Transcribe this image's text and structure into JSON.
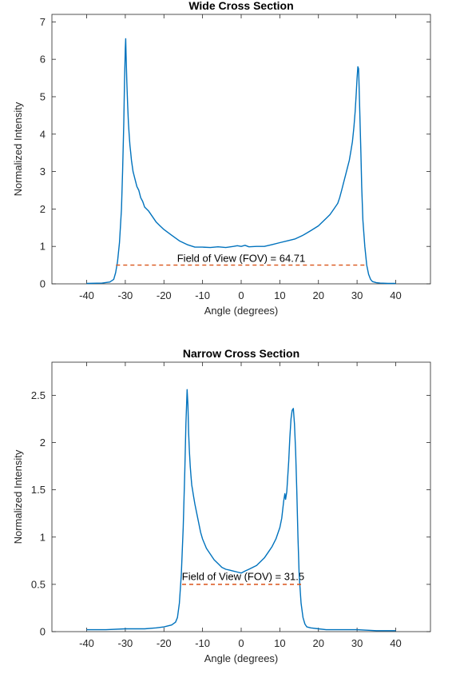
{
  "chart_data": [
    {
      "type": "line",
      "title": "Wide Cross Section",
      "xlabel": "Angle (degrees)",
      "ylabel": "Normalized Intensity",
      "xlim": [
        -49,
        49
      ],
      "ylim": [
        0,
        7.2
      ],
      "xticks": [
        "-40",
        "-30",
        "-20",
        "-10",
        "0",
        "10",
        "20",
        "30",
        "40"
      ],
      "yticks": [
        "0",
        "1",
        "2",
        "3",
        "4",
        "5",
        "6",
        "7"
      ],
      "grid": false,
      "series": [
        {
          "color": "#0072BD",
          "x": [
            -40,
            -36,
            -34,
            -33,
            -32.5,
            -32,
            -31.5,
            -31,
            -30.7,
            -30.4,
            -30.2,
            -30,
            -29.9,
            -29.8,
            -29.6,
            -29.4,
            -29.2,
            -29,
            -28.8,
            -28.6,
            -28.4,
            -28,
            -27.5,
            -27,
            -26.5,
            -26,
            -25.5,
            -25,
            -24,
            -23,
            -22,
            -21,
            -20,
            -18,
            -16,
            -14,
            -12,
            -10,
            -8,
            -6,
            -4,
            -2,
            -1,
            0,
            1,
            2,
            4,
            6,
            8,
            10,
            12,
            14,
            16,
            18,
            20,
            21,
            22,
            23,
            24,
            25,
            25.5,
            26,
            26.5,
            27,
            27.5,
            28,
            28.4,
            28.8,
            29.2,
            29.5,
            29.8,
            30,
            30.2,
            30.4,
            30.5,
            30.6,
            30.8,
            31,
            31.2,
            31.5,
            32,
            32.5,
            33,
            33.5,
            34,
            35,
            36,
            38,
            40
          ],
          "values": [
            0.01,
            0.02,
            0.05,
            0.12,
            0.3,
            0.6,
            1.1,
            2.0,
            3.0,
            4.3,
            5.4,
            6.3,
            6.55,
            6.1,
            5.4,
            4.8,
            4.3,
            4.0,
            3.7,
            3.5,
            3.3,
            3.0,
            2.8,
            2.6,
            2.5,
            2.3,
            2.2,
            2.05,
            1.95,
            1.8,
            1.65,
            1.55,
            1.45,
            1.3,
            1.15,
            1.05,
            0.98,
            0.98,
            0.97,
            0.99,
            0.97,
            1.0,
            1.02,
            1.0,
            1.03,
            0.99,
            1.0,
            1.0,
            1.05,
            1.1,
            1.15,
            1.2,
            1.3,
            1.42,
            1.55,
            1.65,
            1.75,
            1.85,
            2.0,
            2.15,
            2.3,
            2.5,
            2.7,
            2.9,
            3.1,
            3.3,
            3.55,
            3.8,
            4.2,
            4.6,
            5.1,
            5.5,
            5.8,
            5.75,
            5.4,
            5.0,
            4.2,
            3.5,
            2.6,
            1.7,
            1.0,
            0.5,
            0.25,
            0.12,
            0.06,
            0.03,
            0.02,
            0.01,
            0.01
          ]
        }
      ],
      "reference_line": {
        "x_start": -32.4,
        "x_end": 32.3,
        "y": 0.5,
        "color": "#D95319",
        "style": "dashed"
      },
      "annotation": {
        "text": "Field of View (FOV) = 64.71",
        "x": 0,
        "y": 0.52
      }
    },
    {
      "type": "line",
      "title": "Narrow Cross Section",
      "xlabel": "Angle (degrees)",
      "ylabel": "Normalized Intensity",
      "xlim": [
        -49,
        49
      ],
      "ylim": [
        0,
        2.85
      ],
      "xticks": [
        "-40",
        "-30",
        "-20",
        "-10",
        "0",
        "10",
        "20",
        "30",
        "40"
      ],
      "yticks": [
        "0",
        "0.5",
        "1",
        "1.5",
        "2",
        "2.5"
      ],
      "grid": false,
      "series": [
        {
          "color": "#0072BD",
          "x": [
            -40,
            -35,
            -30,
            -25,
            -22,
            -20,
            -18,
            -17,
            -16.5,
            -16,
            -15.5,
            -15,
            -14.6,
            -14.3,
            -14,
            -13.8,
            -13.6,
            -13.4,
            -13.2,
            -13,
            -12.8,
            -12.6,
            -12.4,
            -12,
            -11.5,
            -11,
            -10.5,
            -10,
            -9,
            -8,
            -7,
            -6,
            -5,
            -4,
            -3,
            -2,
            -1,
            0,
            1,
            2,
            3,
            4,
            5,
            6,
            7,
            8,
            9,
            10,
            10.5,
            11,
            11.3,
            11.5,
            11.8,
            12,
            12.3,
            12.6,
            12.9,
            13.2,
            13.5,
            13.8,
            14.1,
            14.4,
            14.7,
            15,
            15.5,
            16,
            16.5,
            17,
            18,
            20,
            22,
            25,
            30,
            35,
            40
          ],
          "values": [
            0.02,
            0.02,
            0.03,
            0.03,
            0.04,
            0.05,
            0.07,
            0.1,
            0.15,
            0.3,
            0.6,
            1.1,
            1.7,
            2.2,
            2.56,
            2.4,
            2.1,
            1.9,
            1.75,
            1.65,
            1.55,
            1.5,
            1.45,
            1.35,
            1.25,
            1.15,
            1.05,
            0.98,
            0.88,
            0.82,
            0.76,
            0.72,
            0.68,
            0.66,
            0.65,
            0.64,
            0.63,
            0.62,
            0.64,
            0.66,
            0.68,
            0.7,
            0.74,
            0.78,
            0.84,
            0.9,
            0.98,
            1.1,
            1.2,
            1.38,
            1.46,
            1.4,
            1.48,
            1.6,
            1.8,
            2.05,
            2.25,
            2.34,
            2.36,
            2.2,
            1.9,
            1.5,
            1.0,
            0.6,
            0.3,
            0.15,
            0.08,
            0.05,
            0.04,
            0.03,
            0.02,
            0.02,
            0.02,
            0.01,
            0.01
          ]
        }
      ],
      "reference_line": {
        "x_start": -15.3,
        "x_end": 16.2,
        "y": 0.5,
        "color": "#D95319",
        "style": "dashed"
      },
      "annotation": {
        "text": "Field of View (FOV) = 31.5",
        "x": 0.5,
        "y": 0.52
      }
    }
  ]
}
